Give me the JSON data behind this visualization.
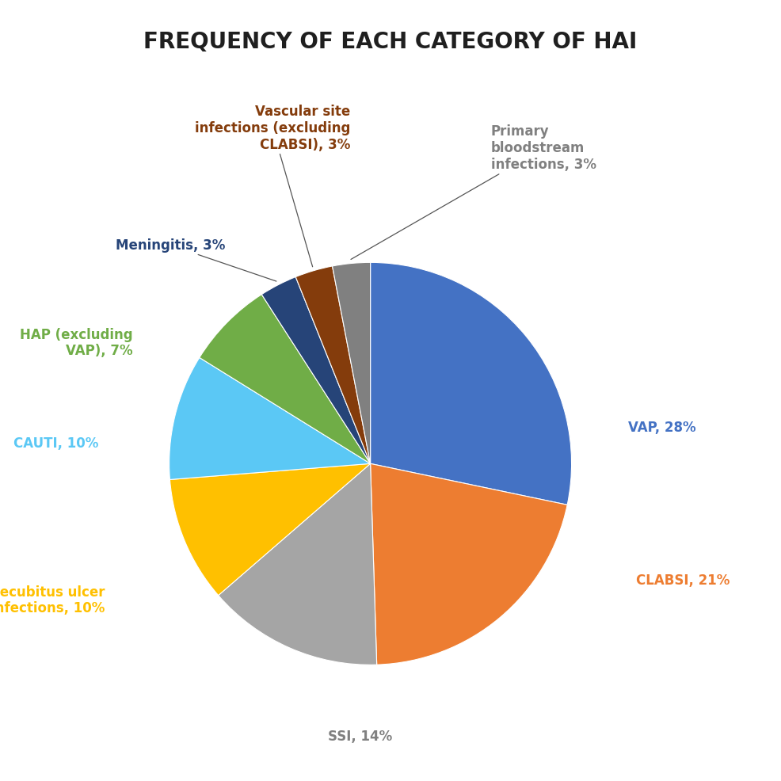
{
  "title": "FREQUENCY OF EACH CATEGORY OF HAI",
  "slices": [
    {
      "label": "VAP",
      "pct": 28,
      "color": "#4472C4"
    },
    {
      "label": "CLABSI",
      "pct": 21,
      "color": "#ED7D31"
    },
    {
      "label": "SSI",
      "pct": 14,
      "color": "#A5A5A5"
    },
    {
      "label": "Decubitus ulcer\ninfections",
      "pct": 10,
      "color": "#FFC000"
    },
    {
      "label": "CAUTI",
      "pct": 10,
      "color": "#5BC8F5"
    },
    {
      "label": "HAP (excluding\nVAP)",
      "pct": 7,
      "color": "#70AD47"
    },
    {
      "label": "Meningitis",
      "pct": 3,
      "color": "#264478"
    },
    {
      "label": "Vascular site\ninfections (excluding\nCLABSI)",
      "pct": 3,
      "color": "#843C0C"
    },
    {
      "label": "Primary\nbloodstream\ninfections",
      "pct": 3,
      "color": "#808080"
    }
  ],
  "label_colors": {
    "VAP": "#4472C4",
    "CLABSI": "#ED7D31",
    "SSI": "#808080",
    "Decubitus ulcer\ninfections": "#FFC000",
    "CAUTI": "#5BC8F5",
    "HAP (excluding\nVAP)": "#70AD47",
    "Meningitis": "#264478",
    "Vascular site\ninfections (excluding\nCLABSI)": "#843C0C",
    "Primary\nbloodstream\ninfections": "#808080"
  },
  "background_color": "#FFFFFF",
  "title_fontsize": 20,
  "label_fontsize": 12
}
